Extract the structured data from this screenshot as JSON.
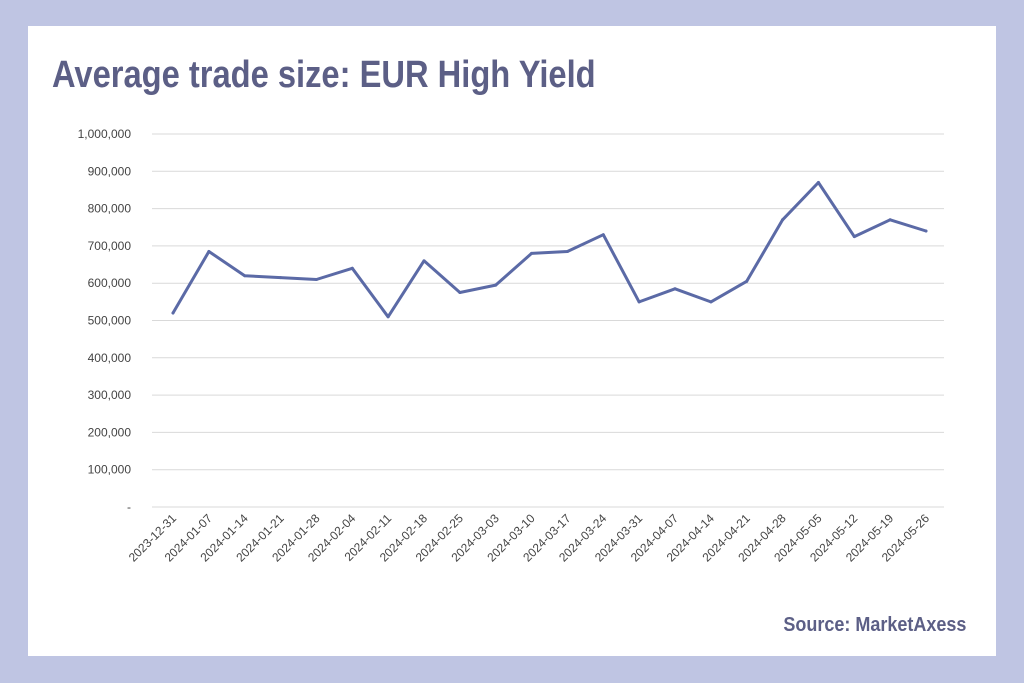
{
  "colors": {
    "background": "#bfc5e3",
    "card": "#ffffff",
    "title": "#5c5f86",
    "line": "#5b6aa6",
    "grid": "#d9d9d9"
  },
  "title": "Average trade size: EUR High Yield",
  "source": "Source: MarketAxess",
  "chart_data": {
    "type": "line",
    "title": "Average trade size: EUR High Yield",
    "xlabel": "",
    "ylabel": "",
    "grid": "horizontal",
    "ylim": [
      0,
      1000000
    ],
    "y_ticks": [
      0,
      100000,
      200000,
      300000,
      400000,
      500000,
      600000,
      700000,
      800000,
      900000,
      1000000
    ],
    "y_tick_labels": [
      "-",
      "100,000",
      "200,000",
      "300,000",
      "400,000",
      "500,000",
      "600,000",
      "700,000",
      "800,000",
      "900,000",
      "1,000,000"
    ],
    "x": [
      "2023-12-31",
      "2024-01-07",
      "2024-01-14",
      "2024-01-21",
      "2024-01-28",
      "2024-02-04",
      "2024-02-11",
      "2024-02-18",
      "2024-02-25",
      "2024-03-03",
      "2024-03-10",
      "2024-03-17",
      "2024-03-24",
      "2024-03-31",
      "2024-04-07",
      "2024-04-14",
      "2024-04-21",
      "2024-04-28",
      "2024-05-05",
      "2024-05-12",
      "2024-05-19",
      "2024-05-26"
    ],
    "series": [
      {
        "values": [
          520000,
          685000,
          620000,
          615000,
          610000,
          640000,
          510000,
          660000,
          575000,
          595000,
          680000,
          685000,
          730000,
          550000,
          585000,
          550000,
          605000,
          770000,
          870000,
          725000,
          770000,
          740000
        ]
      }
    ]
  }
}
